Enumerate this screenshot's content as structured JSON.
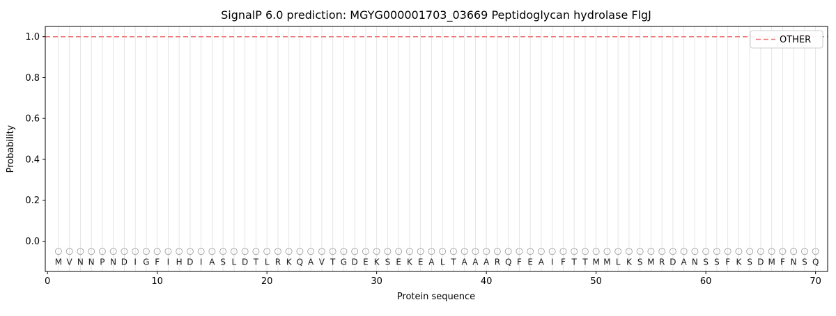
{
  "chart_data": {
    "type": "line",
    "title": "SignalP 6.0 prediction: MGYG000001703_03669 Peptidoglycan hydrolase FlgJ",
    "xlabel": "Protein sequence",
    "ylabel": "Probability",
    "xlim": [
      -0.2,
      71.1
    ],
    "ylim": [
      -0.148,
      1.05
    ],
    "x_ticks": [
      0,
      10,
      20,
      30,
      40,
      50,
      60,
      70
    ],
    "x_tick_labels": [
      "0",
      "10",
      "20",
      "30",
      "40",
      "50",
      "60",
      "70"
    ],
    "y_ticks": [
      0.0,
      0.2,
      0.4,
      0.6,
      0.8,
      1.0
    ],
    "y_tick_labels": [
      "0.0",
      "0.2",
      "0.4",
      "0.6",
      "0.8",
      "1.0"
    ],
    "grid": true,
    "sequence": "MVNNPNDIGFIHDIASLDTLRKQAVTGDEKSEKEALTAAARQFEAIFTTMMLKSMRDANSSFKSDMFNSQ",
    "residue_marker_y": -0.05,
    "residue_letter_y": -0.1,
    "series": [
      {
        "name": "OTHER",
        "style": "dashed",
        "value": 1.0,
        "color": "#ed7374"
      }
    ],
    "legend": {
      "position": "upper right",
      "entries": [
        {
          "label": "OTHER",
          "color": "#ed7374",
          "style": "dashed"
        }
      ]
    },
    "colors": {
      "grid": "#e2e2e2",
      "spine": "#000000",
      "marker_edge": "#a8a8a8",
      "legend_border": "#cccccc"
    }
  }
}
